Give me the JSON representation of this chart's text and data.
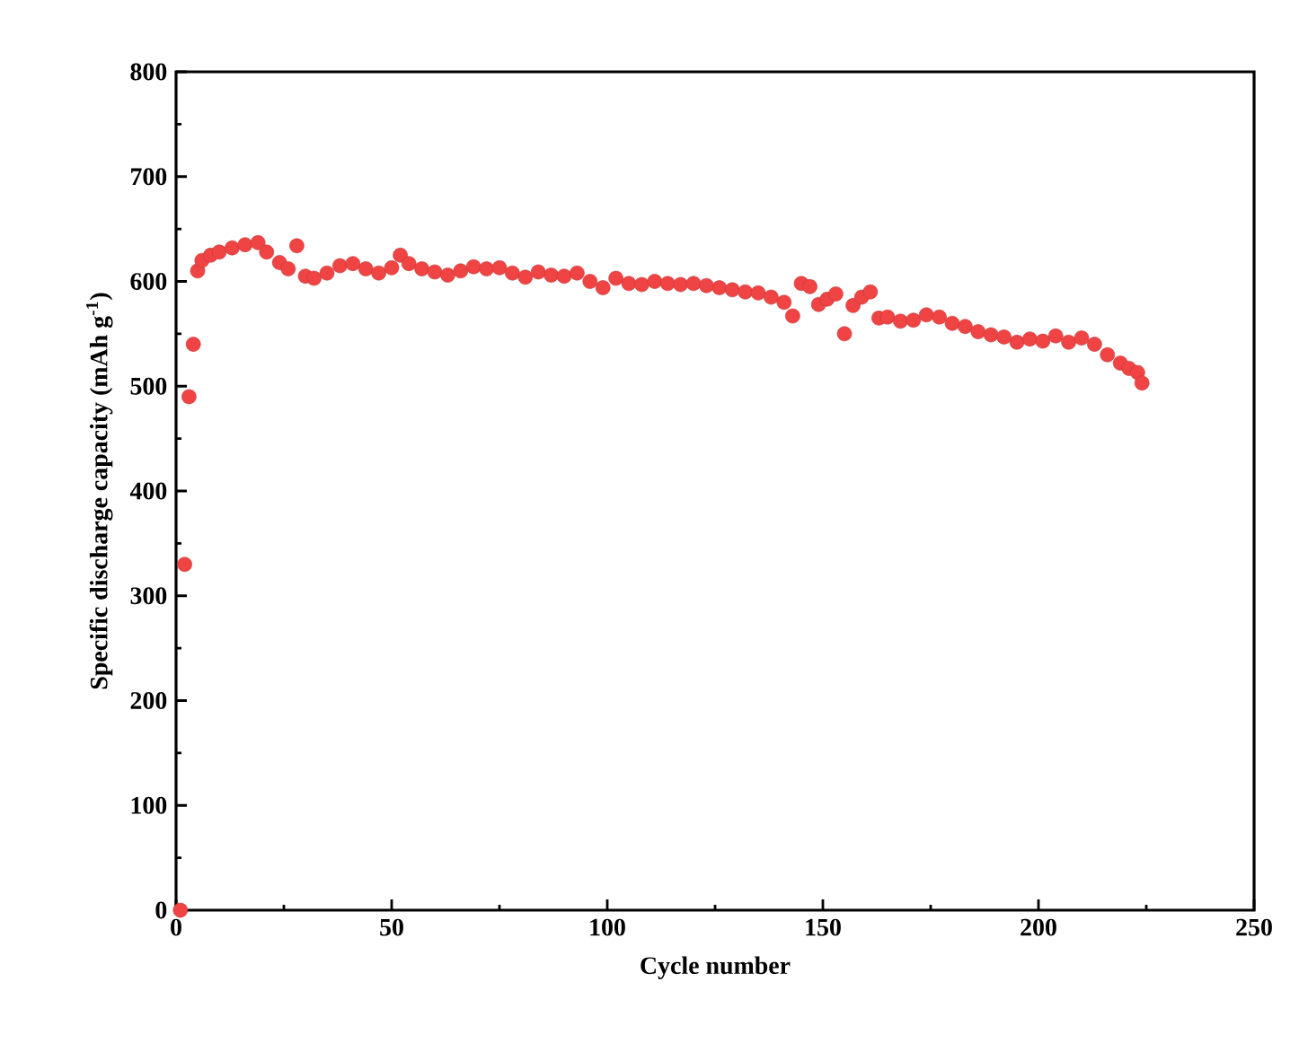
{
  "chart_data": {
    "type": "scatter",
    "xlabel": "Cycle number",
    "ylabel": "Specific discharge capacity (mAh g$^{-1}$)",
    "xlim": [
      0,
      250
    ],
    "ylim": [
      0,
      800
    ],
    "xticks": [
      0,
      50,
      100,
      150,
      200,
      250
    ],
    "yticks": [
      0,
      100,
      200,
      300,
      400,
      500,
      600,
      700,
      800
    ],
    "marker": "circle",
    "series": [
      {
        "color": "#f04444",
        "x": [
          1,
          2,
          3,
          4,
          5,
          6,
          8,
          10,
          13,
          16,
          19,
          21,
          24,
          26,
          28,
          30,
          32,
          35,
          38,
          41,
          44,
          47,
          50,
          52,
          54,
          57,
          60,
          63,
          66,
          69,
          72,
          75,
          78,
          81,
          84,
          87,
          90,
          93,
          96,
          99,
          102,
          105,
          108,
          111,
          114,
          117,
          120,
          123,
          126,
          129,
          132,
          135,
          138,
          141,
          143,
          145,
          147,
          149,
          151,
          153,
          155,
          157,
          159,
          161,
          163,
          165,
          168,
          171,
          174,
          177,
          180,
          183,
          186,
          189,
          192,
          195,
          198,
          201,
          204,
          207,
          210,
          213,
          216,
          219,
          221,
          223,
          224
        ],
        "values": [
          0,
          330,
          490,
          540,
          610,
          620,
          625,
          628,
          632,
          635,
          637,
          628,
          618,
          612,
          634,
          605,
          603,
          608,
          615,
          617,
          612,
          608,
          613,
          625,
          617,
          612,
          609,
          606,
          610,
          614,
          612,
          613,
          608,
          604,
          609,
          606,
          605,
          608,
          600,
          594,
          603,
          598,
          597,
          600,
          598,
          597,
          598,
          596,
          594,
          592,
          590,
          589,
          585,
          580,
          567,
          598,
          595,
          578,
          583,
          588,
          550,
          577,
          585,
          590,
          565,
          566,
          562,
          563,
          568,
          566,
          560,
          557,
          552,
          549,
          547,
          542,
          545,
          543,
          548,
          542,
          546,
          540,
          530,
          522,
          517,
          513,
          503
        ]
      }
    ]
  }
}
